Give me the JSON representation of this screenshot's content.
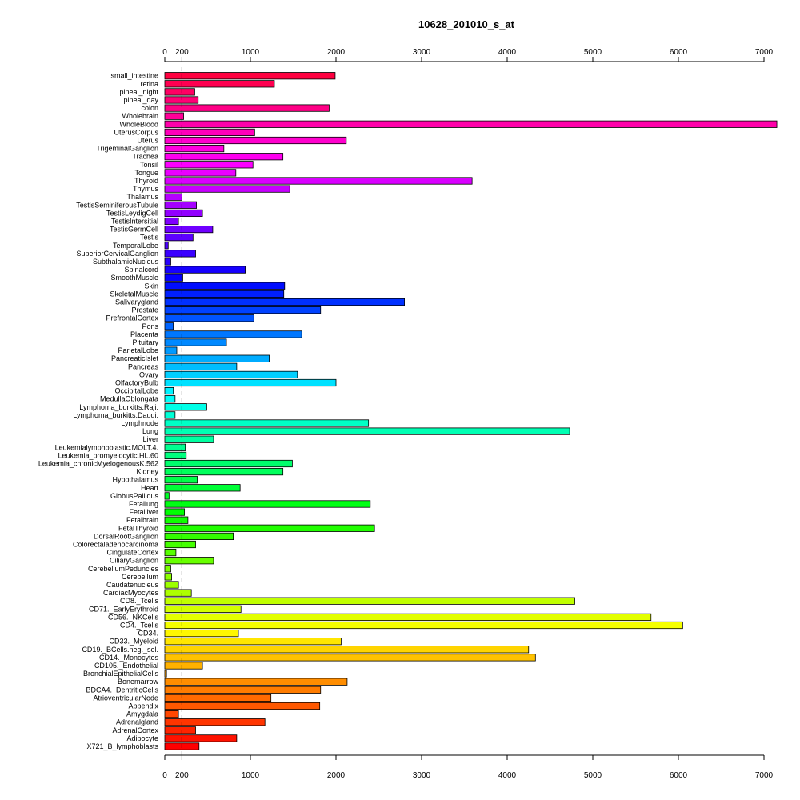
{
  "chart_data": {
    "type": "bar",
    "orientation": "horizontal",
    "title": "10628_201010_s_at",
    "xlabel": "",
    "ylabel": "",
    "xlim": [
      0,
      7000
    ],
    "xticks": [
      0,
      200,
      1000,
      2000,
      3000,
      4000,
      5000,
      6000,
      7000
    ],
    "reference_line": 200,
    "color_scheme": "rainbow",
    "categories": [
      "small_intestine",
      "retina",
      "pineal_night",
      "pineal_day",
      "colon",
      "Wholebrain",
      "WholeBlood",
      "UterusCorpus",
      "Uterus",
      "TrigeminalGanglion",
      "Trachea",
      "Tonsil",
      "Tongue",
      "Thyroid",
      "Thymus",
      "Thalamus",
      "TestisSeminiferousTubule",
      "TestisLeydigCell",
      "TestisIntersitial",
      "TestisGermCell",
      "Testis",
      "TemporalLobe",
      "SuperiorCervicalGanglion",
      "SubthalamicNucleus",
      "Spinalcord",
      "SmoothMuscle",
      "Skin",
      "SkeletalMuscle",
      "Salivarygland",
      "Prostate",
      "PrefrontalCortex",
      "Pons",
      "Placenta",
      "Pituitary",
      "ParietalLobe",
      "PancreaticIslet",
      "Pancreas",
      "Ovary",
      "OlfactoryBulb",
      "OccipitalLobe",
      "MedullaOblongata",
      "Lymphoma_burkitts.Raji.",
      "Lymphoma_burkitts.Daudi.",
      "Lymphnode",
      "Lung",
      "Liver",
      "Leukemialymphoblastic.MOLT.4.",
      "Leukemia_promyelocytic.HL.60",
      "Leukemia_chronicMyelogenousK.562",
      "Kidney",
      "Hypothalamus",
      "Heart",
      "GlobusPallidus",
      "Fetallung",
      "Fetalliver",
      "Fetalbrain",
      "FetalThyroid",
      "DorsalRootGanglion",
      "Colorectaladenocarcinoma",
      "CingulateCortex",
      "CiliaryGanglion",
      "CerebellumPeduncles",
      "Cerebellum",
      "Caudatenucleus",
      "CardiacMyocytes",
      "CD8._Tcells",
      "CD71._EarlyErythroid",
      "CD56._NKCells",
      "CD4._Tcells",
      "CD34.",
      "CD33._Myeloid",
      "CD19._BCells.neg._sel.",
      "CD14._Monocytes",
      "CD105._Endothelial",
      "BronchialEpithelialCells",
      "Bonemarrow",
      "BDCA4._DentriticCells",
      "AtrioventricularNode",
      "Appendix",
      "Amygdala",
      "Adrenalgland",
      "AdrenalCortex",
      "Adipocyte",
      "X721_B_lymphoblasts"
    ],
    "values": [
      1990,
      1280,
      350,
      390,
      1920,
      220,
      7150,
      1050,
      2120,
      690,
      1380,
      1030,
      830,
      3590,
      1460,
      200,
      370,
      440,
      160,
      560,
      330,
      40,
      360,
      70,
      940,
      210,
      1400,
      1390,
      2800,
      1820,
      1040,
      100,
      1600,
      720,
      140,
      1220,
      840,
      1550,
      2000,
      100,
      120,
      490,
      120,
      2380,
      4730,
      570,
      240,
      250,
      1490,
      1380,
      380,
      880,
      50,
      2400,
      230,
      270,
      2450,
      800,
      360,
      130,
      570,
      70,
      80,
      160,
      310,
      4790,
      890,
      5680,
      6050,
      860,
      2060,
      4250,
      4330,
      440,
      20,
      2130,
      1820,
      1240,
      1810,
      160,
      1170,
      360,
      840,
      400
    ]
  }
}
